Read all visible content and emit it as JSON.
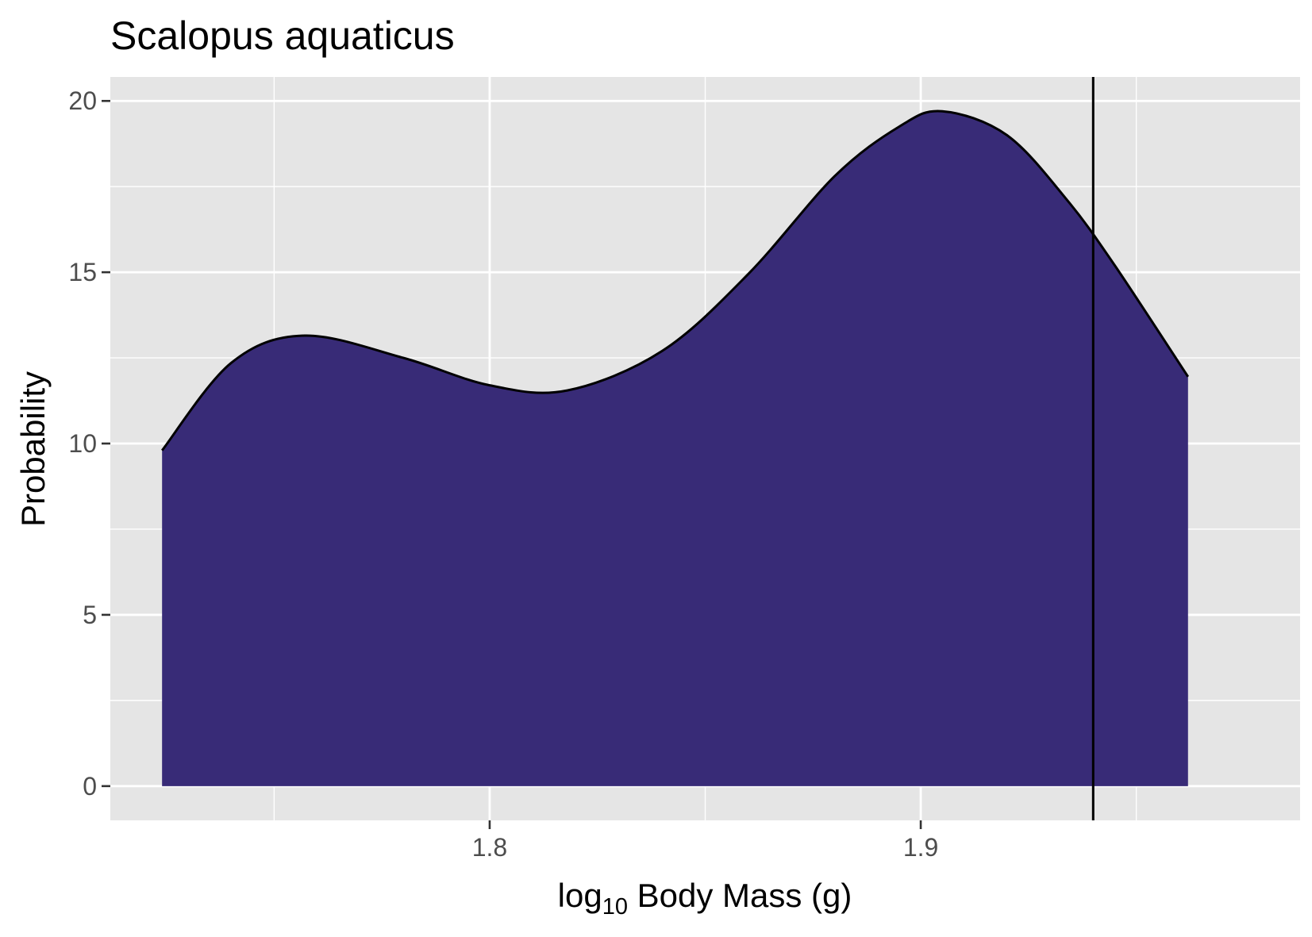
{
  "colors": {
    "panel_background": "#e5e5e5",
    "grid": "#ffffff",
    "fill": "#382b77",
    "line": "#000000",
    "tick_label": "#4d4d4d"
  },
  "chart_data": {
    "type": "area",
    "title": "Scalopus aquaticus",
    "xlabel": {
      "main": "log",
      "subscript": "10",
      "rest": " Body Mass (g)"
    },
    "ylabel": "Probability",
    "xlim": [
      1.712,
      1.988
    ],
    "ylim": [
      -1,
      20.7
    ],
    "x_ticks": [
      1.8,
      1.9
    ],
    "x_tick_labels": [
      "1.8",
      "1.9"
    ],
    "x_minor_ticks": [
      1.75,
      1.85,
      1.95
    ],
    "y_ticks": [
      0,
      5,
      10,
      15,
      20
    ],
    "y_tick_labels": [
      "0",
      "5",
      "10",
      "15",
      "20"
    ],
    "y_minor_ticks": [
      2.5,
      7.5,
      12.5,
      17.5
    ],
    "grid": true,
    "legend": "none",
    "series": [
      {
        "x": [
          1.724,
          1.74,
          1.757,
          1.78,
          1.8,
          1.818,
          1.84,
          1.86,
          1.88,
          1.895,
          1.905,
          1.92,
          1.934,
          1.945,
          1.962
        ],
        "y": [
          9.8,
          12.35,
          13.15,
          12.5,
          11.7,
          11.55,
          12.7,
          14.95,
          17.8,
          19.25,
          19.7,
          19.0,
          17.1,
          15.2,
          11.95
        ]
      }
    ],
    "vline": 1.94
  }
}
